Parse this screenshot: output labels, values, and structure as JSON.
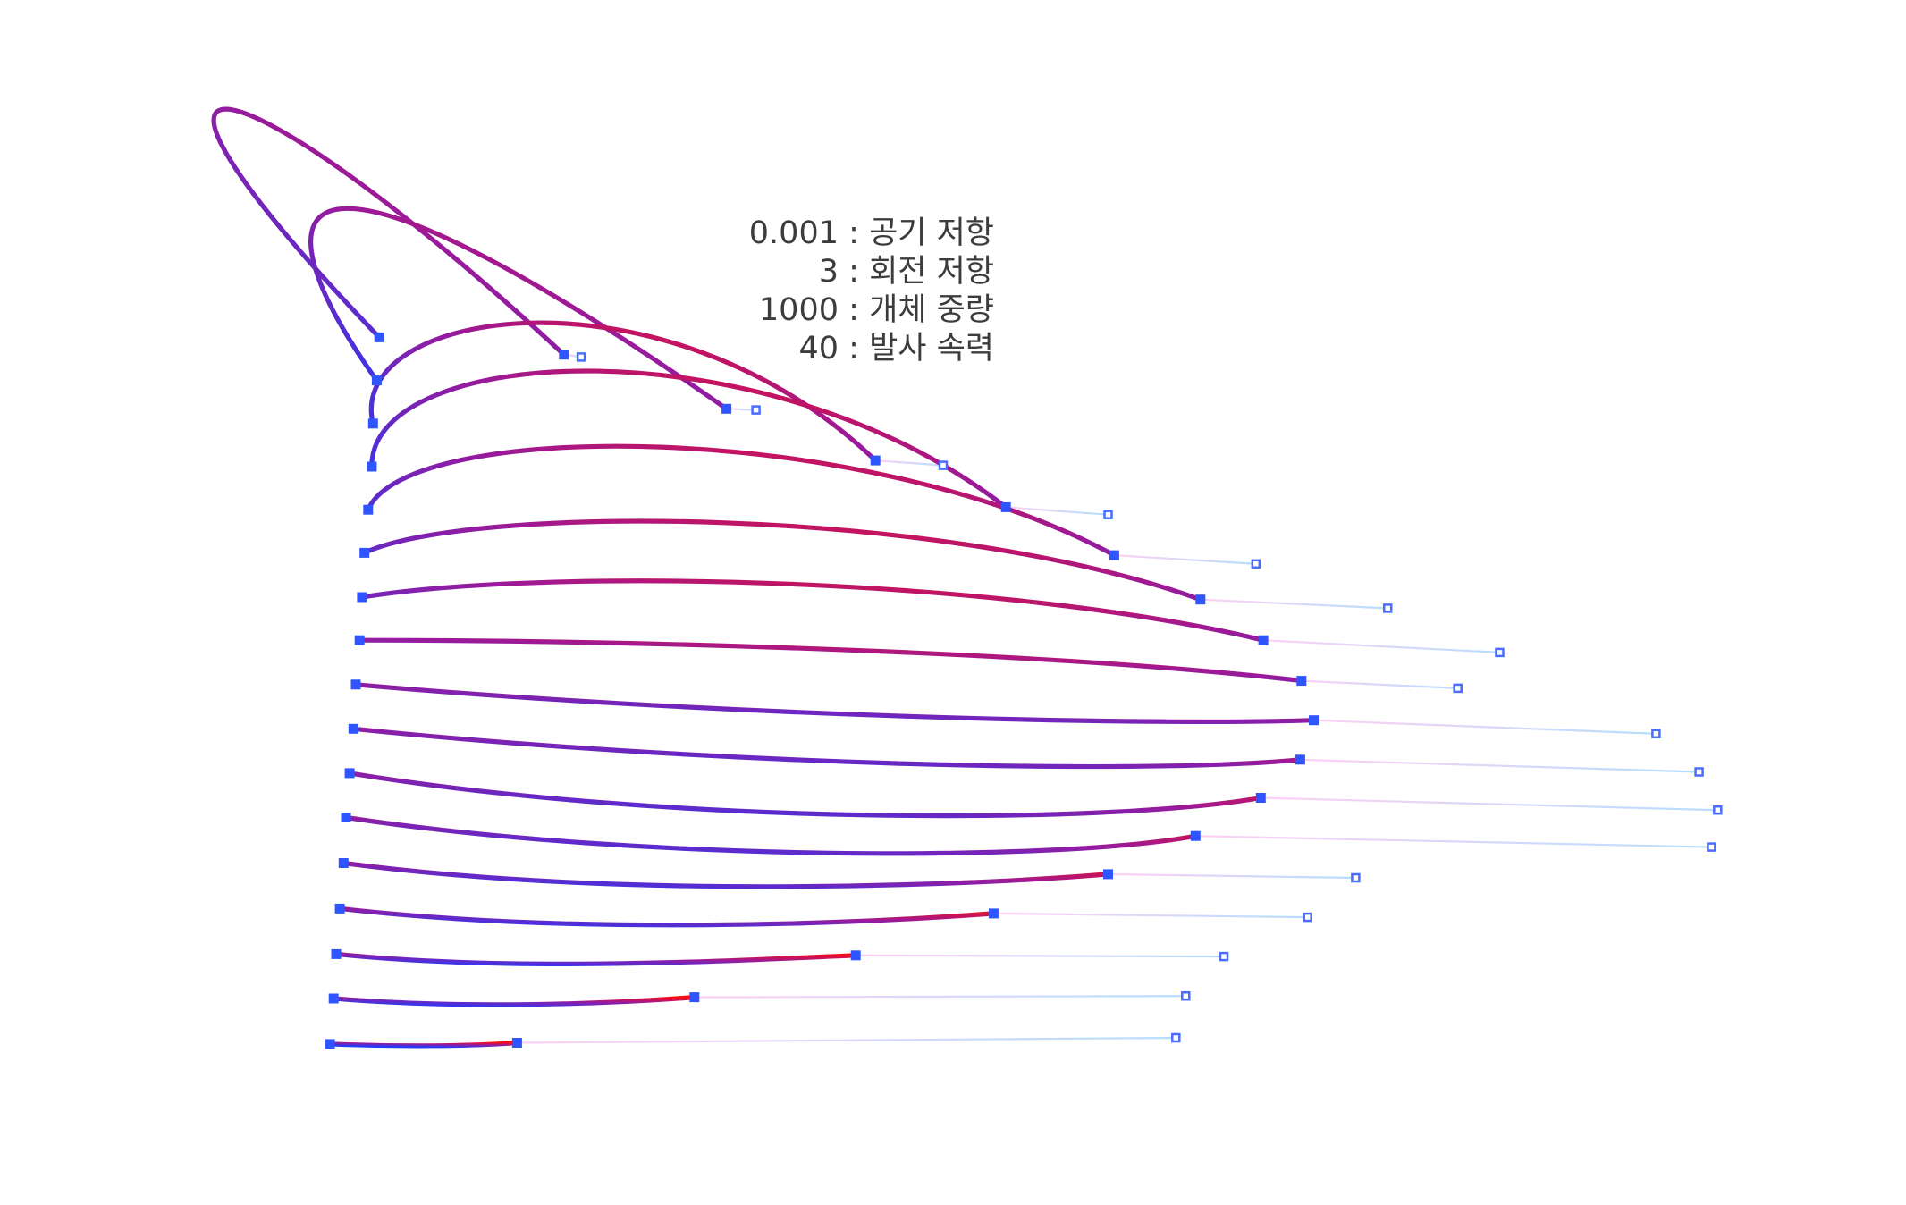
{
  "parameters": [
    {
      "value": "0.001",
      "separator": ":",
      "label": "공기 저항"
    },
    {
      "value": "3",
      "separator": ":",
      "label": "회전 저항"
    },
    {
      "value": "1000",
      "separator": ":",
      "label": "개체 중량"
    },
    {
      "value": "40",
      "separator": ":",
      "label": "발사 속력"
    }
  ],
  "colors": {
    "start": "#1f3cff",
    "end": "#ff0a0a",
    "marker": "#2f55ff",
    "marker_light": "#4a6cff",
    "guide_pink": "#ffc8f0",
    "guide_blue": "#a9d8ff",
    "text": "#3c3c3c"
  },
  "markers": "square"
}
